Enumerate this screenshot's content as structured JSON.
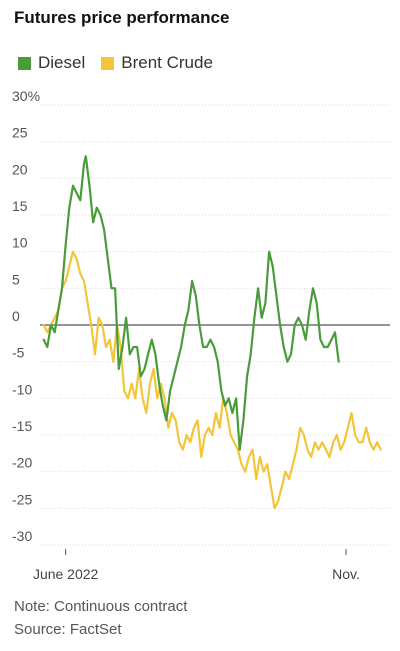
{
  "title": "Futures price performance",
  "colors": {
    "diesel": "#4a9c3a",
    "brent": "#f2c53a",
    "grid": "#d9d9d9",
    "zero": "#555555"
  },
  "notes": {
    "note": "Note: Continuous contract",
    "source": "Source: FactSet"
  },
  "chart_data": {
    "type": "line",
    "title": "Futures price performance",
    "xlabel": "",
    "ylabel": "",
    "ylim": [
      -30,
      30
    ],
    "yticks": [
      30,
      25,
      20,
      15,
      10,
      5,
      0,
      -5,
      -10,
      -15,
      -20,
      -25,
      -30
    ],
    "ytick_labels": [
      "30%",
      "25",
      "20",
      "15",
      "10",
      "5",
      "0",
      "-5",
      "-10",
      "-15",
      "-20",
      "-25",
      "-30"
    ],
    "xlim": [
      "2022-05-18",
      "2022-11-25"
    ],
    "xticks": [
      {
        "label": "June 2022",
        "x": "2022-06-01"
      },
      {
        "label": "Nov.",
        "x": "2022-11-01"
      }
    ],
    "legend_position": "top-left",
    "grid": true,
    "series": [
      {
        "name": "Diesel",
        "color": "#4a9c3a",
        "points": [
          [
            "2022-05-20",
            -2
          ],
          [
            "2022-05-22",
            -3
          ],
          [
            "2022-05-24",
            0
          ],
          [
            "2022-05-26",
            -1
          ],
          [
            "2022-05-28",
            2
          ],
          [
            "2022-05-30",
            5
          ],
          [
            "2022-06-01",
            11
          ],
          [
            "2022-06-03",
            16
          ],
          [
            "2022-06-05",
            19
          ],
          [
            "2022-06-07",
            18
          ],
          [
            "2022-06-09",
            17
          ],
          [
            "2022-06-11",
            22
          ],
          [
            "2022-06-12",
            23
          ],
          [
            "2022-06-14",
            19
          ],
          [
            "2022-06-16",
            14
          ],
          [
            "2022-06-18",
            16
          ],
          [
            "2022-06-20",
            15
          ],
          [
            "2022-06-22",
            13
          ],
          [
            "2022-06-24",
            9
          ],
          [
            "2022-06-26",
            5
          ],
          [
            "2022-06-28",
            5
          ],
          [
            "2022-06-30",
            -6
          ],
          [
            "2022-07-02",
            -3
          ],
          [
            "2022-07-04",
            1
          ],
          [
            "2022-07-06",
            -4
          ],
          [
            "2022-07-08",
            -3
          ],
          [
            "2022-07-10",
            -3
          ],
          [
            "2022-07-12",
            -7
          ],
          [
            "2022-07-14",
            -6
          ],
          [
            "2022-07-16",
            -4
          ],
          [
            "2022-07-18",
            -2
          ],
          [
            "2022-07-20",
            -4
          ],
          [
            "2022-07-22",
            -8
          ],
          [
            "2022-07-24",
            -11
          ],
          [
            "2022-07-26",
            -13
          ],
          [
            "2022-07-28",
            -9
          ],
          [
            "2022-07-30",
            -7
          ],
          [
            "2022-08-01",
            -5
          ],
          [
            "2022-08-03",
            -3
          ],
          [
            "2022-08-05",
            0
          ],
          [
            "2022-08-07",
            2
          ],
          [
            "2022-08-09",
            6
          ],
          [
            "2022-08-11",
            4
          ],
          [
            "2022-08-13",
            0
          ],
          [
            "2022-08-15",
            -3
          ],
          [
            "2022-08-17",
            -3
          ],
          [
            "2022-08-19",
            -2
          ],
          [
            "2022-08-21",
            -3
          ],
          [
            "2022-08-23",
            -5
          ],
          [
            "2022-08-25",
            -9
          ],
          [
            "2022-08-27",
            -11
          ],
          [
            "2022-08-29",
            -10
          ],
          [
            "2022-08-31",
            -12
          ],
          [
            "2022-09-02",
            -10
          ],
          [
            "2022-09-04",
            -17
          ],
          [
            "2022-09-06",
            -13
          ],
          [
            "2022-09-08",
            -7
          ],
          [
            "2022-09-10",
            -4
          ],
          [
            "2022-09-12",
            1
          ],
          [
            "2022-09-14",
            5
          ],
          [
            "2022-09-16",
            1
          ],
          [
            "2022-09-18",
            3
          ],
          [
            "2022-09-20",
            10
          ],
          [
            "2022-09-22",
            8
          ],
          [
            "2022-09-24",
            4
          ],
          [
            "2022-09-26",
            0
          ],
          [
            "2022-09-28",
            -3
          ],
          [
            "2022-09-30",
            -5
          ],
          [
            "2022-10-02",
            -4
          ],
          [
            "2022-10-04",
            0
          ],
          [
            "2022-10-06",
            1
          ],
          [
            "2022-10-08",
            0
          ],
          [
            "2022-10-10",
            -2
          ],
          [
            "2022-10-12",
            2
          ],
          [
            "2022-10-14",
            5
          ],
          [
            "2022-10-16",
            3
          ],
          [
            "2022-10-18",
            -2
          ],
          [
            "2022-10-20",
            -3
          ],
          [
            "2022-10-22",
            -3
          ],
          [
            "2022-10-24",
            -2
          ],
          [
            "2022-10-26",
            -1
          ],
          [
            "2022-10-28",
            -5
          ]
        ]
      },
      {
        "name": "Brent Crude",
        "color": "#f2c53a",
        "points": [
          [
            "2022-05-20",
            0
          ],
          [
            "2022-05-22",
            -1
          ],
          [
            "2022-05-24",
            0
          ],
          [
            "2022-05-26",
            1
          ],
          [
            "2022-05-28",
            2
          ],
          [
            "2022-05-30",
            5
          ],
          [
            "2022-06-01",
            6
          ],
          [
            "2022-06-03",
            8
          ],
          [
            "2022-06-05",
            10
          ],
          [
            "2022-06-07",
            9
          ],
          [
            "2022-06-09",
            7
          ],
          [
            "2022-06-11",
            6
          ],
          [
            "2022-06-13",
            3
          ],
          [
            "2022-06-15",
            0
          ],
          [
            "2022-06-17",
            -4
          ],
          [
            "2022-06-19",
            1
          ],
          [
            "2022-06-21",
            0
          ],
          [
            "2022-06-23",
            -3
          ],
          [
            "2022-06-25",
            -2
          ],
          [
            "2022-06-27",
            -5
          ],
          [
            "2022-06-29",
            0
          ],
          [
            "2022-07-01",
            -3
          ],
          [
            "2022-07-03",
            -9
          ],
          [
            "2022-07-05",
            -10
          ],
          [
            "2022-07-07",
            -8
          ],
          [
            "2022-07-09",
            -10
          ],
          [
            "2022-07-11",
            -6
          ],
          [
            "2022-07-13",
            -10
          ],
          [
            "2022-07-15",
            -12
          ],
          [
            "2022-07-17",
            -8
          ],
          [
            "2022-07-19",
            -6
          ],
          [
            "2022-07-21",
            -10
          ],
          [
            "2022-07-23",
            -8
          ],
          [
            "2022-07-25",
            -10
          ],
          [
            "2022-07-27",
            -14
          ],
          [
            "2022-07-29",
            -12
          ],
          [
            "2022-07-31",
            -13
          ],
          [
            "2022-08-02",
            -16
          ],
          [
            "2022-08-04",
            -17
          ],
          [
            "2022-08-06",
            -15
          ],
          [
            "2022-08-08",
            -16
          ],
          [
            "2022-08-10",
            -14
          ],
          [
            "2022-08-12",
            -13
          ],
          [
            "2022-08-14",
            -18
          ],
          [
            "2022-08-16",
            -15
          ],
          [
            "2022-08-18",
            -14
          ],
          [
            "2022-08-20",
            -15
          ],
          [
            "2022-08-22",
            -12
          ],
          [
            "2022-08-24",
            -14
          ],
          [
            "2022-08-26",
            -10
          ],
          [
            "2022-08-28",
            -12
          ],
          [
            "2022-08-30",
            -15
          ],
          [
            "2022-09-01",
            -16
          ],
          [
            "2022-09-03",
            -17
          ],
          [
            "2022-09-05",
            -19
          ],
          [
            "2022-09-07",
            -20
          ],
          [
            "2022-09-09",
            -18
          ],
          [
            "2022-09-11",
            -17
          ],
          [
            "2022-09-13",
            -21
          ],
          [
            "2022-09-15",
            -18
          ],
          [
            "2022-09-17",
            -20
          ],
          [
            "2022-09-19",
            -19
          ],
          [
            "2022-09-21",
            -22
          ],
          [
            "2022-09-23",
            -25
          ],
          [
            "2022-09-25",
            -24
          ],
          [
            "2022-09-27",
            -22
          ],
          [
            "2022-09-29",
            -20
          ],
          [
            "2022-10-01",
            -21
          ],
          [
            "2022-10-03",
            -19
          ],
          [
            "2022-10-05",
            -17
          ],
          [
            "2022-10-07",
            -14
          ],
          [
            "2022-10-09",
            -15
          ],
          [
            "2022-10-11",
            -17
          ],
          [
            "2022-10-13",
            -18
          ],
          [
            "2022-10-15",
            -16
          ],
          [
            "2022-10-17",
            -17
          ],
          [
            "2022-10-19",
            -16
          ],
          [
            "2022-10-21",
            -17
          ],
          [
            "2022-10-23",
            -18
          ],
          [
            "2022-10-25",
            -16
          ],
          [
            "2022-10-27",
            -15
          ],
          [
            "2022-10-29",
            -17
          ],
          [
            "2022-10-31",
            -16
          ],
          [
            "2022-11-02",
            -14
          ],
          [
            "2022-11-04",
            -12
          ],
          [
            "2022-11-06",
            -15
          ],
          [
            "2022-11-08",
            -16
          ],
          [
            "2022-11-10",
            -16
          ],
          [
            "2022-11-12",
            -14
          ],
          [
            "2022-11-14",
            -16
          ],
          [
            "2022-11-16",
            -17
          ],
          [
            "2022-11-18",
            -16
          ],
          [
            "2022-11-20",
            -17
          ]
        ]
      }
    ]
  }
}
